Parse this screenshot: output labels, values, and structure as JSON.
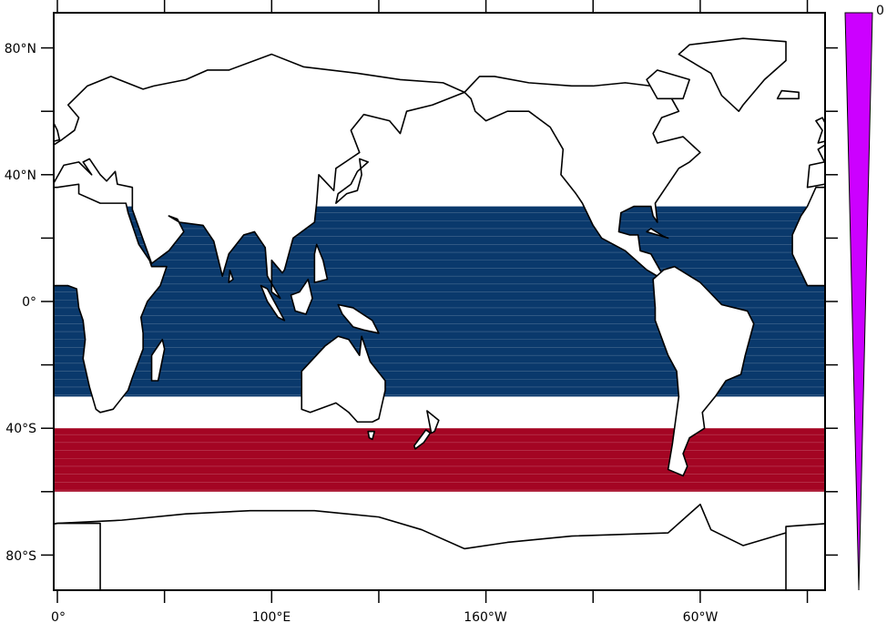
{
  "map": {
    "projection": "cylindrical-equidistant",
    "lon_range": [
      -2,
      358
    ],
    "lat_range": [
      -91,
      91
    ],
    "y_tick_labels": [
      {
        "lat": 80,
        "text": "80°N"
      },
      {
        "lat": 40,
        "text": "40°N"
      },
      {
        "lat": 0,
        "text": "0°"
      },
      {
        "lat": -40,
        "text": "40°S"
      },
      {
        "lat": -80,
        "text": "80°S"
      }
    ],
    "y_minor_ticks": [
      60,
      20,
      -20,
      -60
    ],
    "x_tick_labels": [
      {
        "lon": 0,
        "text": "0°"
      },
      {
        "lon": 100,
        "text": "100°E"
      },
      {
        "lon": 200,
        "text": "160°W"
      },
      {
        "lon": 300,
        "text": "60°W"
      }
    ],
    "x_minor_ticks": [
      50,
      150,
      250,
      350
    ],
    "bands": [
      {
        "name": "tropical-band",
        "lat_min": -30,
        "lat_max": 30,
        "color": "#0a396c"
      },
      {
        "name": "southern-band",
        "lat_min": -60,
        "lat_max": -40,
        "color": "#a40523"
      }
    ],
    "land_color": "#ffffff",
    "coast_color": "#000000"
  },
  "colorbar": {
    "label": "0",
    "color": "#cc00ff"
  }
}
